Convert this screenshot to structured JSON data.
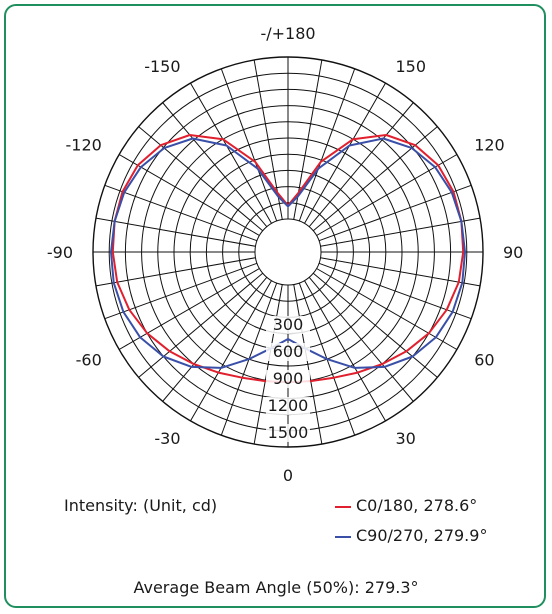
{
  "chart_data": {
    "type": "polar",
    "angle_labels": [
      {
        "angle": 180,
        "text": "-/+180"
      },
      {
        "angle": 150,
        "text": "150"
      },
      {
        "angle": -150,
        "text": "-150"
      },
      {
        "angle": 120,
        "text": "120"
      },
      {
        "angle": -120,
        "text": "-120"
      },
      {
        "angle": 90,
        "text": "90"
      },
      {
        "angle": -90,
        "text": "-90"
      },
      {
        "angle": 60,
        "text": "60"
      },
      {
        "angle": -60,
        "text": "-60"
      },
      {
        "angle": 30,
        "text": "30"
      },
      {
        "angle": -30,
        "text": "-30"
      },
      {
        "angle": 0,
        "text": "0"
      }
    ],
    "radial_ticks": [
      300,
      600,
      900,
      1200,
      1500
    ],
    "radial_max": 1800,
    "grid": true,
    "series": [
      {
        "name": "C0/180, 278.6°",
        "color": "#e0202e",
        "points": [
          [
            0,
            1080
          ],
          [
            10,
            1090
          ],
          [
            20,
            1120
          ],
          [
            30,
            1180
          ],
          [
            40,
            1260
          ],
          [
            50,
            1350
          ],
          [
            60,
            1440
          ],
          [
            70,
            1510
          ],
          [
            80,
            1560
          ],
          [
            90,
            1580
          ],
          [
            100,
            1590
          ],
          [
            110,
            1590
          ],
          [
            120,
            1560
          ],
          [
            130,
            1480
          ],
          [
            140,
            1330
          ],
          [
            150,
            1080
          ],
          [
            160,
            700
          ],
          [
            170,
            300
          ],
          [
            180,
            150
          ],
          [
            -170,
            300
          ],
          [
            -160,
            700
          ],
          [
            -150,
            1080
          ],
          [
            -140,
            1330
          ],
          [
            -130,
            1480
          ],
          [
            -120,
            1560
          ],
          [
            -110,
            1590
          ],
          [
            -100,
            1590
          ],
          [
            -90,
            1580
          ],
          [
            -80,
            1560
          ],
          [
            -70,
            1510
          ],
          [
            -60,
            1440
          ],
          [
            -50,
            1350
          ],
          [
            -40,
            1260
          ],
          [
            -30,
            1180
          ],
          [
            -20,
            1120
          ],
          [
            -10,
            1090
          ]
        ]
      },
      {
        "name": "C90/270, 279.9°",
        "color": "#3a4fa8",
        "points": [
          [
            0,
            600
          ],
          [
            10,
            720
          ],
          [
            20,
            900
          ],
          [
            30,
            1120
          ],
          [
            40,
            1300
          ],
          [
            50,
            1440
          ],
          [
            60,
            1530
          ],
          [
            70,
            1580
          ],
          [
            80,
            1600
          ],
          [
            90,
            1600
          ],
          [
            100,
            1590
          ],
          [
            110,
            1570
          ],
          [
            120,
            1520
          ],
          [
            130,
            1430
          ],
          [
            140,
            1280
          ],
          [
            150,
            1000
          ],
          [
            160,
            620
          ],
          [
            170,
            260
          ],
          [
            180,
            140
          ],
          [
            -170,
            260
          ],
          [
            -160,
            620
          ],
          [
            -150,
            1000
          ],
          [
            -140,
            1280
          ],
          [
            -130,
            1430
          ],
          [
            -120,
            1520
          ],
          [
            -110,
            1570
          ],
          [
            -100,
            1590
          ],
          [
            -90,
            1600
          ],
          [
            -80,
            1600
          ],
          [
            -70,
            1580
          ],
          [
            -60,
            1530
          ],
          [
            -50,
            1440
          ],
          [
            -40,
            1300
          ],
          [
            -30,
            1120
          ],
          [
            -20,
            900
          ],
          [
            -10,
            720
          ]
        ]
      }
    ]
  },
  "labels": {
    "intensity": "Intensity: (Unit, cd)",
    "legend_c0": "C0/180, 278.6°",
    "legend_c90": "C90/270, 279.9°",
    "average": "Average Beam Angle (50%): 279.3°"
  }
}
